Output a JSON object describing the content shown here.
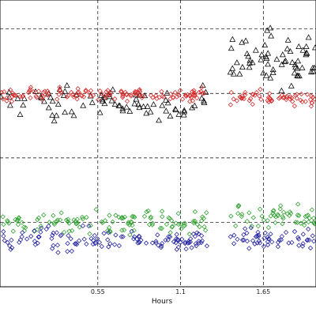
{
  "chart_data": {
    "type": "scatter",
    "title": "",
    "xlabel": "Hours",
    "ylabel": "",
    "xlim": [
      -0.1,
      2.0
    ],
    "ylim": [
      0,
      4.45
    ],
    "x_ticks": [
      0.55,
      1.1,
      1.65
    ],
    "x_tick_labels": [
      "0.55",
      "1.1",
      "1.65"
    ],
    "grid": true,
    "legend": "none",
    "gap": [
      1.28,
      1.42
    ],
    "series": [
      {
        "marker": "triangle",
        "color": "#000000",
        "segments": [
          {
            "x_range": [
              -0.1,
              1.28
            ],
            "center": 2.85,
            "spread": 0.12,
            "n": 80
          },
          {
            "x_range": [
              1.43,
              2.0
            ],
            "center": 3.5,
            "spread": 0.22,
            "n": 65
          }
        ]
      },
      {
        "marker": "diamond",
        "color": "#d62728",
        "segments": [
          {
            "x_range": [
              -0.1,
              1.28
            ],
            "center": 2.99,
            "spread": 0.05,
            "n": 130
          },
          {
            "x_range": [
              1.43,
              2.0
            ],
            "center": 2.93,
            "spread": 0.05,
            "n": 60
          }
        ]
      },
      {
        "marker": "diamond",
        "color": "#2ca02c",
        "segments": [
          {
            "x_range": [
              -0.1,
              1.28
            ],
            "center": 1.0,
            "spread": 0.09,
            "n": 120
          },
          {
            "x_range": [
              1.43,
              2.0
            ],
            "center": 1.07,
            "spread": 0.09,
            "n": 55
          }
        ]
      },
      {
        "marker": "diamond",
        "color": "#1f1fa0",
        "segments": [
          {
            "x_range": [
              -0.1,
              1.28
            ],
            "center": 0.72,
            "spread": 0.09,
            "n": 120
          },
          {
            "x_range": [
              1.43,
              2.0
            ],
            "center": 0.74,
            "spread": 0.08,
            "n": 55
          }
        ]
      }
    ]
  }
}
